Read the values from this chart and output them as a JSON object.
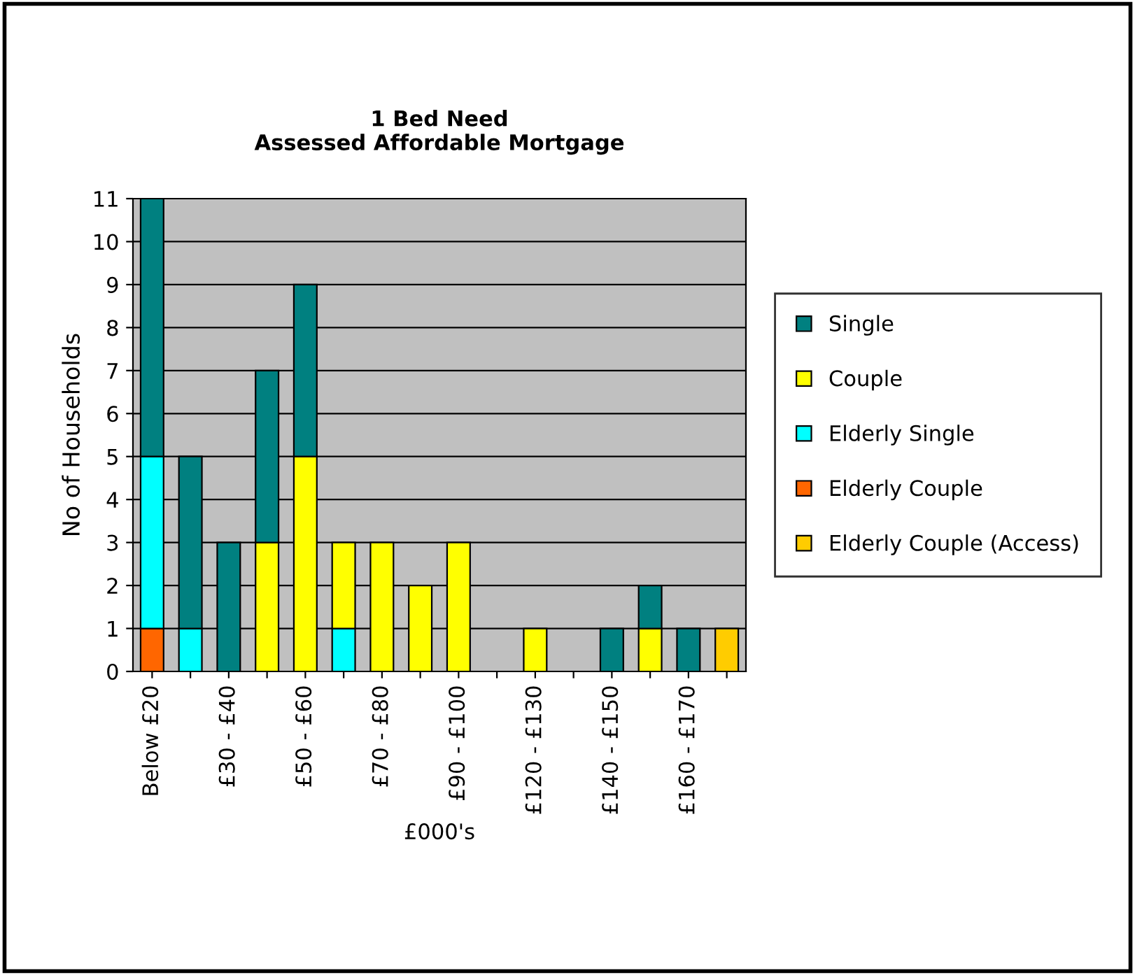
{
  "chart_data": {
    "type": "bar",
    "title": "1 Bed Need\nAssessed Affordable Mortgage",
    "xlabel": "£000's",
    "ylabel": "No of Households",
    "categories": [
      "Below £20",
      null,
      "£30 - £40",
      null,
      "£50 - £60",
      null,
      "£70 - £80",
      null,
      "£90 - £100",
      null,
      "£120 - £130",
      null,
      "£140 - £150",
      null,
      "£160 - £170",
      null
    ],
    "stacked": true,
    "series": [
      {
        "name": "Elderly Couple (Access)",
        "color": "#ffcc00",
        "values": [
          null,
          null,
          null,
          null,
          null,
          null,
          null,
          null,
          null,
          null,
          null,
          null,
          null,
          null,
          null,
          1
        ]
      },
      {
        "name": "Elderly Couple",
        "color": "#ff6600",
        "values": [
          1,
          null,
          null,
          null,
          null,
          null,
          null,
          null,
          null,
          null,
          null,
          null,
          null,
          null,
          null,
          null
        ]
      },
      {
        "name": "Elderly Single",
        "color": "#00ffff",
        "values": [
          4,
          1,
          null,
          null,
          null,
          1,
          null,
          null,
          null,
          null,
          null,
          null,
          null,
          null,
          null,
          null
        ]
      },
      {
        "name": "Couple",
        "color": "#ffff00",
        "values": [
          null,
          null,
          null,
          3,
          5,
          2,
          3,
          2,
          3,
          null,
          1,
          null,
          null,
          1,
          null,
          null
        ]
      },
      {
        "name": "Single",
        "color": "#008080",
        "values": [
          6,
          4,
          3,
          4,
          4,
          null,
          null,
          null,
          null,
          null,
          null,
          null,
          1,
          1,
          1,
          null
        ]
      }
    ],
    "ylim": [
      0,
      11
    ],
    "yticks": [
      0,
      1,
      2,
      3,
      4,
      5,
      6,
      7,
      8,
      9,
      10,
      11
    ],
    "grid": "y",
    "legend": "right"
  }
}
